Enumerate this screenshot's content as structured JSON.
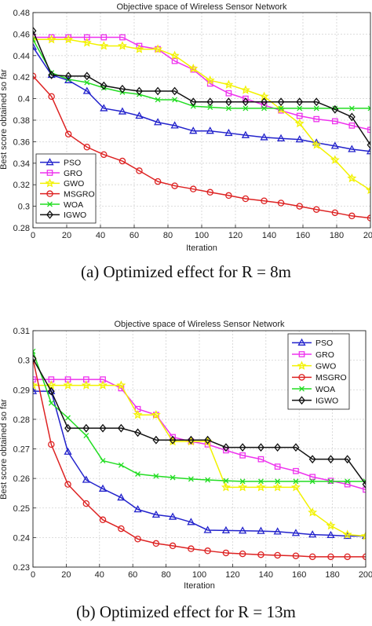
{
  "captions": [
    "(a) Optimized effect for R = 8m",
    "(b) Optimized effect for R = 13m"
  ],
  "series_styles": [
    {
      "name": "PSO",
      "color": "#2323cc",
      "marker": "triangle"
    },
    {
      "name": "GRO",
      "color": "#ee33ee",
      "marker": "square"
    },
    {
      "name": "GWO",
      "color": "#f2f200",
      "marker": "star"
    },
    {
      "name": "MSGRO",
      "color": "#dd2222",
      "marker": "circle"
    },
    {
      "name": "WOA",
      "color": "#22dd22",
      "marker": "x"
    },
    {
      "name": "IGWO",
      "color": "#111111",
      "marker": "diamond"
    }
  ],
  "chart_data": [
    {
      "type": "line",
      "title": "Objective space of Wireless Sensor Network",
      "xlabel": "Iteration",
      "ylabel": "Best score obtained so far",
      "xlim": [
        0,
        200
      ],
      "ylim": [
        0.28,
        0.48
      ],
      "xticks": [
        0,
        20,
        40,
        60,
        80,
        100,
        120,
        140,
        160,
        180,
        200
      ],
      "yticks": [
        0.28,
        0.3,
        0.32,
        0.34,
        0.36,
        0.38,
        0.4,
        0.42,
        0.44,
        0.46,
        0.48
      ],
      "ytick_labels": [
        "0.28",
        "0.3",
        "0.32",
        "0.34",
        "0.36",
        "0.38",
        "0.4",
        "0.42",
        "0.44",
        "0.46",
        "0.48"
      ],
      "grid": true,
      "legend_position": "bottom-left",
      "legend": [
        "PSO",
        "GRO",
        "GWO",
        "MSGRO",
        "WOA",
        "IGWO"
      ],
      "series": [
        {
          "name": "PSO",
          "x": [
            0,
            11,
            21,
            32,
            42,
            53,
            63,
            74,
            84,
            95,
            105,
            116,
            126,
            137,
            147,
            158,
            168,
            179,
            189,
            200
          ],
          "values": [
            0.448,
            0.422,
            0.417,
            0.407,
            0.391,
            0.388,
            0.384,
            0.378,
            0.375,
            0.37,
            0.37,
            0.368,
            0.366,
            0.364,
            0.363,
            0.362,
            0.359,
            0.356,
            0.353,
            0.351
          ]
        },
        {
          "name": "GRO",
          "x": [
            0,
            11,
            21,
            32,
            42,
            53,
            63,
            74,
            84,
            95,
            105,
            116,
            126,
            137,
            147,
            158,
            168,
            179,
            189,
            200
          ],
          "values": [
            0.457,
            0.457,
            0.457,
            0.457,
            0.457,
            0.457,
            0.449,
            0.446,
            0.435,
            0.427,
            0.414,
            0.405,
            0.4,
            0.394,
            0.389,
            0.384,
            0.381,
            0.379,
            0.375,
            0.371
          ]
        },
        {
          "name": "GWO",
          "x": [
            0,
            11,
            21,
            32,
            42,
            53,
            63,
            74,
            84,
            95,
            105,
            116,
            126,
            137,
            147,
            158,
            168,
            179,
            189,
            200
          ],
          "values": [
            0.455,
            0.455,
            0.455,
            0.452,
            0.449,
            0.449,
            0.446,
            0.446,
            0.44,
            0.428,
            0.417,
            0.413,
            0.408,
            0.402,
            0.39,
            0.377,
            0.357,
            0.343,
            0.326,
            0.315
          ]
        },
        {
          "name": "MSGRO",
          "x": [
            0,
            11,
            21,
            32,
            42,
            53,
            63,
            74,
            84,
            95,
            105,
            116,
            126,
            137,
            147,
            158,
            168,
            179,
            189,
            200
          ],
          "values": [
            0.421,
            0.402,
            0.367,
            0.355,
            0.348,
            0.342,
            0.333,
            0.323,
            0.319,
            0.316,
            0.313,
            0.31,
            0.307,
            0.305,
            0.303,
            0.3,
            0.297,
            0.294,
            0.291,
            0.289
          ]
        },
        {
          "name": "WOA",
          "x": [
            0,
            11,
            21,
            32,
            42,
            53,
            63,
            74,
            84,
            95,
            105,
            116,
            126,
            137,
            147,
            158,
            168,
            179,
            189,
            200
          ],
          "values": [
            0.455,
            0.424,
            0.418,
            0.415,
            0.41,
            0.406,
            0.404,
            0.399,
            0.399,
            0.393,
            0.392,
            0.391,
            0.391,
            0.391,
            0.391,
            0.391,
            0.391,
            0.391,
            0.391,
            0.391
          ]
        },
        {
          "name": "IGWO",
          "x": [
            0,
            11,
            21,
            32,
            42,
            53,
            63,
            74,
            84,
            95,
            105,
            116,
            126,
            137,
            147,
            158,
            168,
            179,
            189,
            200
          ],
          "values": [
            0.463,
            0.422,
            0.421,
            0.421,
            0.412,
            0.409,
            0.407,
            0.407,
            0.407,
            0.397,
            0.397,
            0.397,
            0.397,
            0.397,
            0.397,
            0.397,
            0.397,
            0.39,
            0.383,
            0.357
          ]
        }
      ]
    },
    {
      "type": "line",
      "title": "Objective space of Wireless Sensor Network",
      "xlabel": "Iteration",
      "ylabel": "Best score obtained so far",
      "xlim": [
        0,
        200
      ],
      "ylim": [
        0.23,
        0.31
      ],
      "xticks": [
        0,
        20,
        40,
        60,
        80,
        100,
        120,
        140,
        160,
        180,
        200
      ],
      "yticks": [
        0.23,
        0.24,
        0.25,
        0.26,
        0.27,
        0.28,
        0.29,
        0.3,
        0.31
      ],
      "ytick_labels": [
        "0.23",
        "0.24",
        "0.25",
        "0.26",
        "0.27",
        "0.28",
        "0.29",
        "0.3",
        "0.31"
      ],
      "grid": true,
      "legend_position": "top-right",
      "legend": [
        "PSO",
        "GRO",
        "GWO",
        "MSGRO",
        "WOA",
        "IGWO"
      ],
      "series": [
        {
          "name": "PSO",
          "x": [
            0,
            11,
            21,
            32,
            42,
            53,
            63,
            74,
            84,
            95,
            105,
            116,
            126,
            137,
            147,
            158,
            168,
            179,
            189,
            200
          ],
          "values": [
            0.2895,
            0.2895,
            0.269,
            0.2595,
            0.2565,
            0.2535,
            0.2495,
            0.2477,
            0.247,
            0.2452,
            0.2425,
            0.2424,
            0.2423,
            0.2422,
            0.242,
            0.2415,
            0.241,
            0.2408,
            0.2405,
            0.2405
          ]
        },
        {
          "name": "GRO",
          "x": [
            0,
            11,
            21,
            32,
            42,
            53,
            63,
            74,
            84,
            95,
            105,
            116,
            126,
            137,
            147,
            158,
            168,
            179,
            189,
            200
          ],
          "values": [
            0.2935,
            0.2935,
            0.2935,
            0.2935,
            0.2935,
            0.2905,
            0.2835,
            0.2815,
            0.274,
            0.2725,
            0.2715,
            0.2695,
            0.2678,
            0.2665,
            0.264,
            0.2625,
            0.2605,
            0.2592,
            0.258,
            0.2562
          ]
        },
        {
          "name": "GWO",
          "x": [
            0,
            11,
            21,
            32,
            42,
            53,
            63,
            74,
            84,
            95,
            105,
            116,
            126,
            137,
            147,
            158,
            168,
            179,
            189,
            200
          ],
          "values": [
            0.2915,
            0.2915,
            0.2915,
            0.2915,
            0.2915,
            0.2915,
            0.2815,
            0.2815,
            0.2725,
            0.2725,
            0.2725,
            0.257,
            0.257,
            0.257,
            0.257,
            0.257,
            0.2485,
            0.244,
            0.241,
            0.2405
          ]
        },
        {
          "name": "MSGRO",
          "x": [
            0,
            11,
            21,
            32,
            42,
            53,
            63,
            74,
            84,
            95,
            105,
            116,
            126,
            137,
            147,
            158,
            168,
            179,
            189,
            200
          ],
          "values": [
            0.3005,
            0.2715,
            0.258,
            0.2515,
            0.246,
            0.243,
            0.2395,
            0.238,
            0.2372,
            0.2362,
            0.2355,
            0.2348,
            0.2345,
            0.2342,
            0.234,
            0.2338,
            0.2335,
            0.2335,
            0.2335,
            0.2335
          ]
        },
        {
          "name": "WOA",
          "x": [
            0,
            11,
            21,
            32,
            42,
            53,
            63,
            74,
            84,
            95,
            105,
            116,
            126,
            137,
            147,
            158,
            168,
            179,
            189,
            200
          ],
          "values": [
            0.303,
            0.2855,
            0.2805,
            0.2745,
            0.266,
            0.2645,
            0.2615,
            0.2608,
            0.2603,
            0.2598,
            0.2595,
            0.2592,
            0.259,
            0.259,
            0.259,
            0.259,
            0.259,
            0.259,
            0.259,
            0.259
          ]
        },
        {
          "name": "IGWO",
          "x": [
            0,
            11,
            21,
            32,
            42,
            53,
            63,
            74,
            84,
            95,
            105,
            116,
            126,
            137,
            147,
            158,
            168,
            179,
            189,
            200
          ],
          "values": [
            0.3005,
            0.2895,
            0.277,
            0.277,
            0.277,
            0.277,
            0.2755,
            0.273,
            0.273,
            0.273,
            0.273,
            0.2705,
            0.2705,
            0.2705,
            0.2705,
            0.2705,
            0.2665,
            0.2665,
            0.2665,
            0.258
          ]
        }
      ]
    }
  ]
}
